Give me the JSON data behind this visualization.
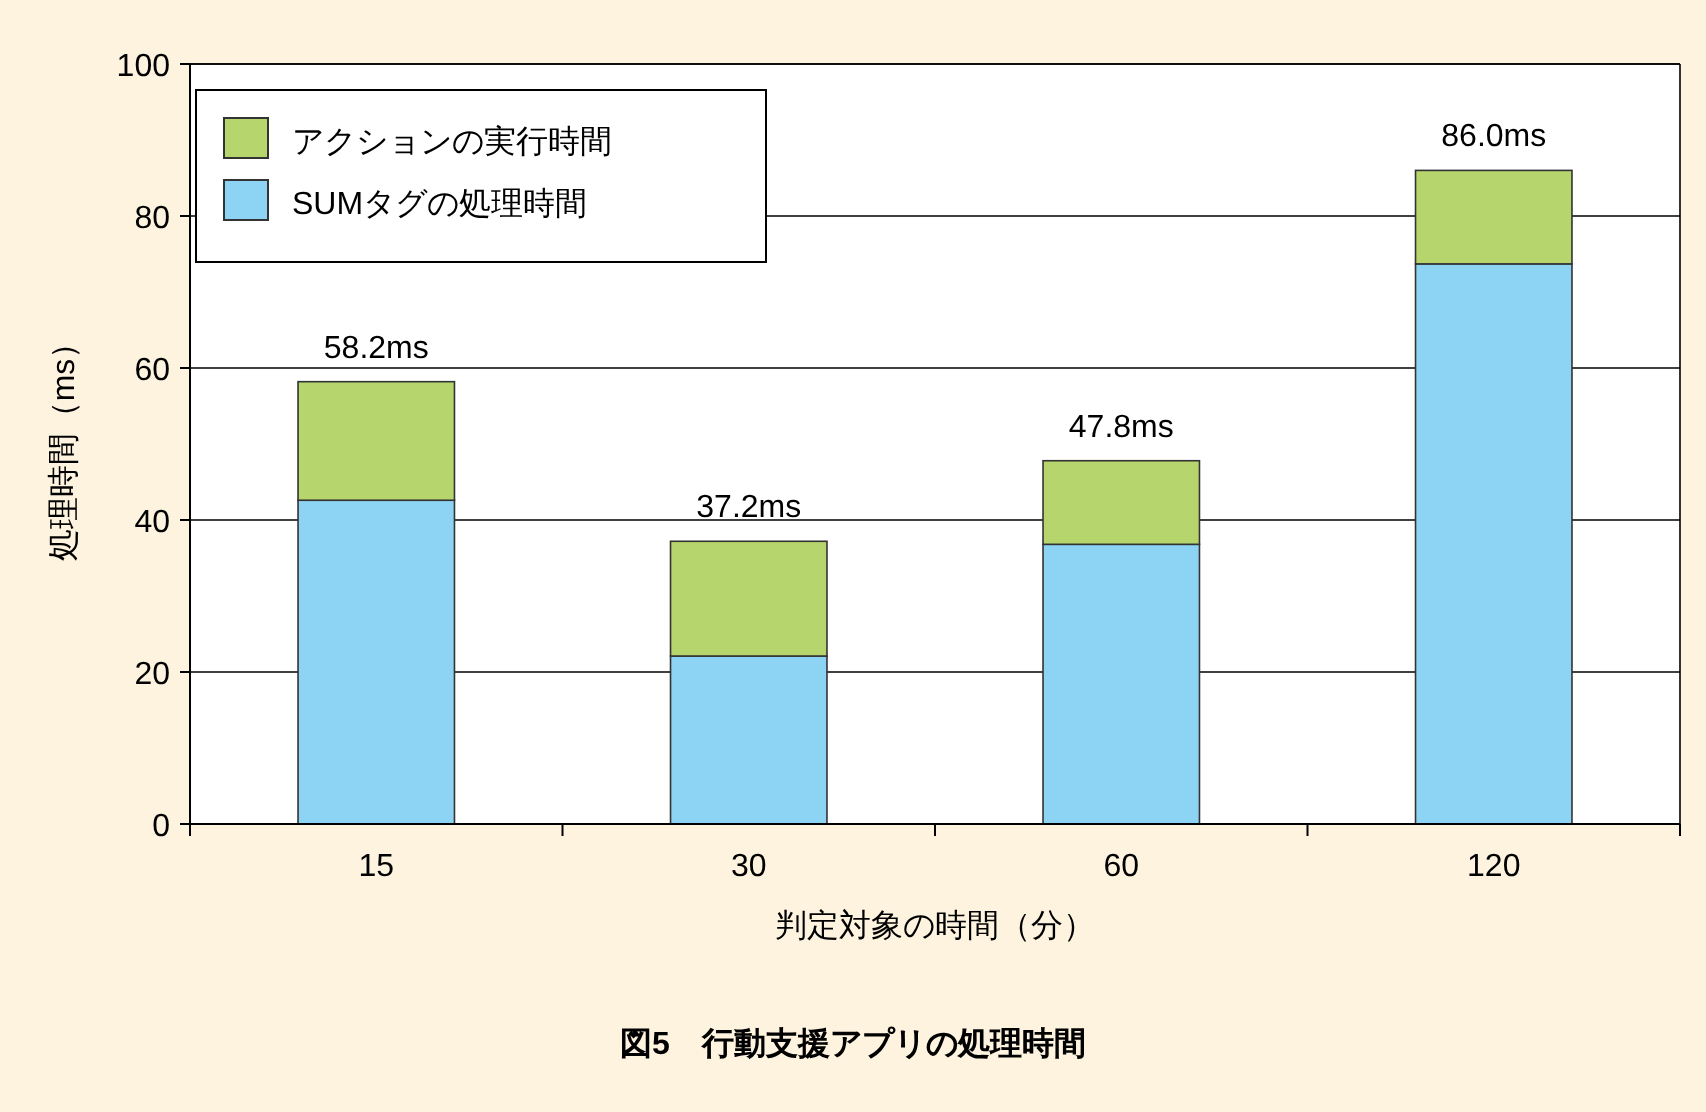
{
  "chart_data": {
    "type": "bar",
    "stacked": true,
    "title": "図5　行動支援アプリの処理時間",
    "xlabel": "判定対象の時間（分）",
    "ylabel": "処理時間（ms）",
    "categories": [
      "15",
      "30",
      "60",
      "120"
    ],
    "series": [
      {
        "name": "SUMタグの処理時間",
        "color": "#8dd3f3",
        "values": [
          42.6,
          22.1,
          36.8,
          73.7
        ]
      },
      {
        "name": "アクションの実行時間",
        "color": "#b6d56c",
        "values": [
          15.6,
          15.1,
          11.0,
          12.3
        ]
      }
    ],
    "totals": [
      "58.2ms",
      "37.2ms",
      "47.8ms",
      "86.0ms"
    ],
    "ylim": [
      0,
      100
    ],
    "yticks": [
      0,
      20,
      40,
      60,
      80,
      100
    ],
    "grid": "y",
    "legend": "top left"
  }
}
